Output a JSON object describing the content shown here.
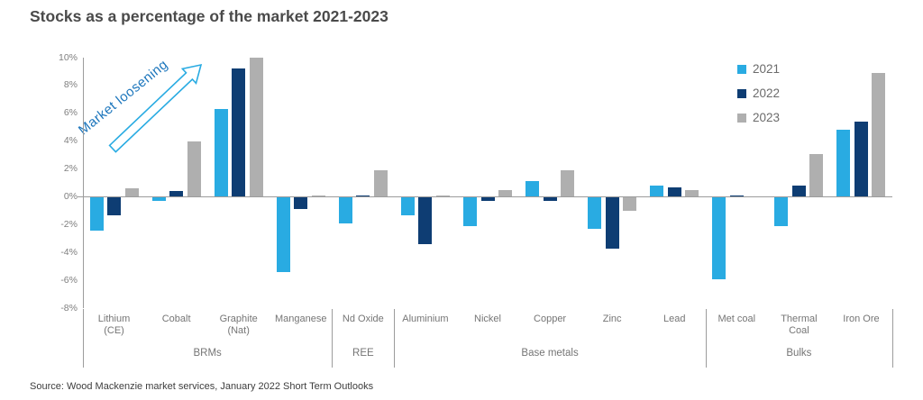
{
  "header": {
    "title": "Stocks as a percentage of the market 2021-2023"
  },
  "source": {
    "text": "Source: Wood Mackenzie market services, January 2022 Short Term Outlooks"
  },
  "chart_data": {
    "type": "bar",
    "title": "Stocks as a percentage of the market 2021-2023",
    "xlabel": "",
    "ylabel": "",
    "ylim": [
      -8,
      10
    ],
    "ytick_step": 2,
    "ytick_suffix": "%",
    "grid": false,
    "legend_position": "top-right",
    "categories": [
      "Lithium\n(CE)",
      "Cobalt",
      "Graphite\n(Nat)",
      "Manganese",
      "Nd Oxide",
      "Aluminium",
      "Nickel",
      "Copper",
      "Zinc",
      "Lead",
      "Met coal",
      "Thermal\nCoal",
      "Iron Ore"
    ],
    "groups": [
      {
        "label": "BRMs",
        "start": 0,
        "end": 3
      },
      {
        "label": "REE",
        "start": 4,
        "end": 4
      },
      {
        "label": "Base metals",
        "start": 5,
        "end": 9
      },
      {
        "label": "Bulks",
        "start": 10,
        "end": 12
      }
    ],
    "series": [
      {
        "name": "2021",
        "color": "#29abe2",
        "values": [
          -2.4,
          -0.3,
          6.3,
          -5.4,
          -1.9,
          -1.3,
          -2.1,
          1.1,
          -2.3,
          0.8,
          -5.9,
          -2.1,
          4.8
        ]
      },
      {
        "name": "2022",
        "color": "#0e3d73",
        "values": [
          -1.3,
          0.4,
          9.2,
          -0.9,
          0.1,
          -3.4,
          -0.3,
          -0.3,
          -3.7,
          0.7,
          0.05,
          0.8,
          5.4
        ]
      },
      {
        "name": "2023",
        "color": "#afafaf",
        "values": [
          0.6,
          4.0,
          10.0,
          0.1,
          1.9,
          0.1,
          0.5,
          1.9,
          -1.0,
          0.5,
          0.0,
          3.1,
          8.9
        ]
      }
    ],
    "annotation": {
      "text": "Market loosening",
      "color": "#1b75bc",
      "arrow_color": "#29abe2"
    },
    "colors": {
      "axis": "#9c9c9c",
      "tick_labels": "#7f7f7f",
      "category_labels": "#757575",
      "title": "#4a4a4a"
    }
  }
}
